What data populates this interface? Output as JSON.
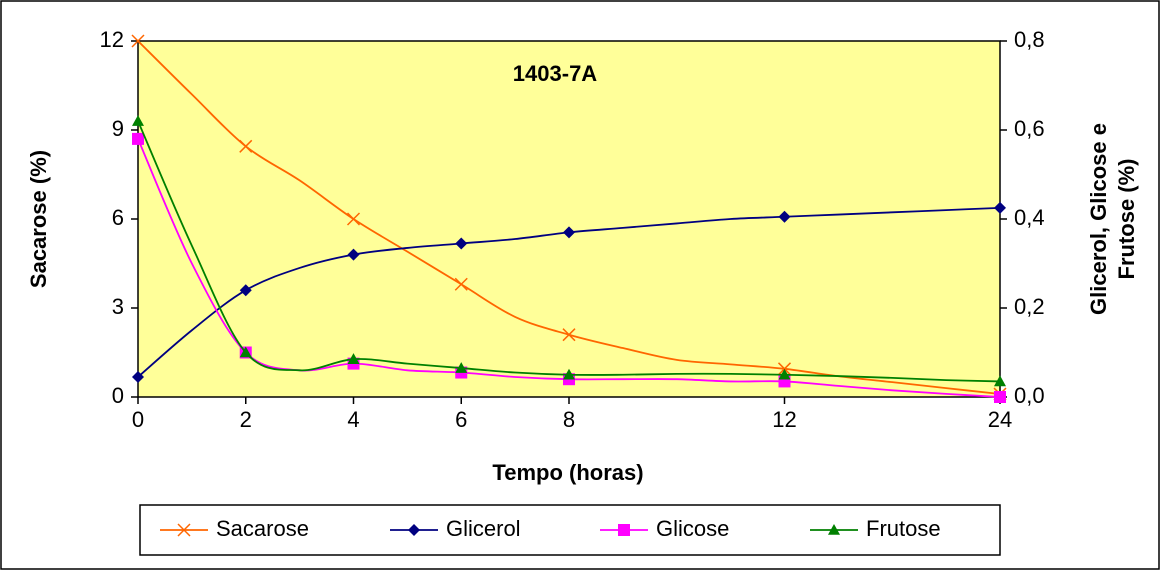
{
  "chart_data": {
    "type": "line",
    "title": "1403-7A",
    "x_label": "Tempo (horas)",
    "y_label": "Sacarose (%)",
    "y2_label": [
      "Glicerol, Glicose e",
      "Frutose (%)"
    ],
    "categories": [
      "0",
      null,
      "2",
      null,
      "4",
      null,
      "6",
      null,
      "8",
      null,
      null,
      null,
      "12",
      null,
      null,
      null,
      "24"
    ],
    "ylim": [
      0,
      12
    ],
    "yticks": [
      0,
      3,
      6,
      9,
      12
    ],
    "y2lim": [
      0,
      0.8
    ],
    "y2ticks": [
      {
        "value": 0,
        "label": "0,0"
      },
      {
        "value": 0.2,
        "label": "0,2"
      },
      {
        "value": 0.4,
        "label": "0,4"
      },
      {
        "value": 0.6,
        "label": "0,6"
      },
      {
        "value": 0.8,
        "label": "0,8"
      }
    ],
    "legend": "bottom",
    "series": [
      {
        "name": "Sacarose",
        "color": "#FF6600",
        "marker": "x",
        "values": [
          12,
          10.2,
          8.45,
          7.3,
          6.0,
          4.9,
          3.8,
          2.7,
          2.1,
          1.65,
          1.25,
          1.1,
          0.95,
          0.7,
          0.5,
          0.3,
          0.1
        ]
      },
      {
        "name": "Glicerol",
        "color": "#000080",
        "marker": "diamond",
        "axis": "y2",
        "values": [
          0.045,
          0.15,
          0.24,
          0.29,
          0.32,
          0.335,
          0.345,
          0.355,
          0.37,
          0.38,
          0.39,
          0.4,
          0.405,
          0.41,
          0.415,
          0.42,
          0.425
        ]
      },
      {
        "name": "Glicose",
        "color": "#FF00FF",
        "marker": "square",
        "axis": "y2",
        "values": [
          0.58,
          0.3,
          0.1,
          0.06,
          0.075,
          0.06,
          0.055,
          0.045,
          0.04,
          0.04,
          0.04,
          0.035,
          0.035,
          0.025,
          0.015,
          0.007,
          0.0
        ]
      },
      {
        "name": "Frutose",
        "color": "#008000",
        "marker": "triangle",
        "axis": "y2",
        "values": [
          0.62,
          0.34,
          0.1,
          0.06,
          0.085,
          0.075,
          0.065,
          0.055,
          0.05,
          0.05,
          0.052,
          0.052,
          0.05,
          0.047,
          0.043,
          0.038,
          0.035
        ]
      }
    ]
  }
}
